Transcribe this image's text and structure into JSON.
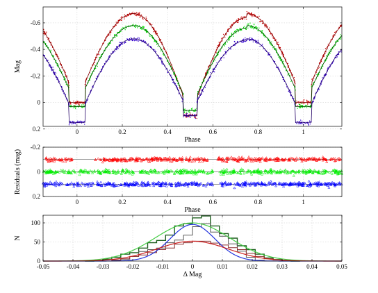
{
  "chart_data": [
    {
      "type": "line",
      "xlabel": "Phase",
      "ylabel": "Mag",
      "xlim": [
        -0.15,
        1.17
      ],
      "ylim": [
        -0.72,
        0.18
      ],
      "y_inverted": true,
      "grid": true,
      "xticks": [
        0,
        0.2,
        0.4,
        0.6,
        0.8,
        1
      ],
      "xtick_labels": [
        "0",
        "0.2",
        "0.4",
        "0.6",
        "0.8",
        "1"
      ],
      "yticks": [
        -0.6,
        -0.4,
        -0.2,
        0,
        0.2
      ],
      "ytick_labels": [
        "-0.6",
        "-0.4",
        "-0.2",
        "0",
        "0.2"
      ],
      "series": [
        {
          "color": "#cc0000",
          "marker": "dots",
          "model": "#7a0000",
          "min_mag": 0.0,
          "max_mag": -0.67,
          "secondary_min_mag": 0.1,
          "max_mag_2": -0.64
        },
        {
          "color": "#00dd00",
          "marker": "dots",
          "model": "#004400",
          "min_mag": 0.03,
          "max_mag": -0.58,
          "secondary_min_mag": 0.06,
          "max_mag_2": -0.56
        },
        {
          "color": "#3300cc",
          "marker": "dots",
          "model": "#220066",
          "min_mag": 0.15,
          "max_mag": -0.48,
          "secondary_min_mag": 0.1,
          "max_mag_2": -0.47
        }
      ]
    },
    {
      "type": "scatter",
      "xlabel": "Phase",
      "ylabel": "Residuals (mag)",
      "xlim": [
        -0.15,
        1.17
      ],
      "ylim": [
        -0.2,
        0.2
      ],
      "y_inverted": true,
      "grid": true,
      "xticks": [
        0,
        0.2,
        0.4,
        0.6,
        0.8,
        1
      ],
      "xtick_labels": [
        "0",
        "0.2",
        "0.4",
        "0.6",
        "0.8",
        "1"
      ],
      "yticks": [
        -0.2,
        0,
        0.2
      ],
      "ytick_labels": [
        "-0.2",
        "0",
        "0.2"
      ],
      "series": [
        {
          "color": "#ff0000",
          "marker": "triangle",
          "offset": -0.1
        },
        {
          "color": "#00ee00",
          "marker": "triangle",
          "offset": 0.0
        },
        {
          "color": "#0000ff",
          "marker": "triangle",
          "offset": 0.1
        }
      ]
    },
    {
      "type": "bar",
      "xlabel": "Δ Mag",
      "ylabel": "N",
      "xlim": [
        -0.05,
        0.05
      ],
      "ylim": [
        0,
        120
      ],
      "grid": true,
      "xticks": [
        -0.05,
        -0.04,
        -0.03,
        -0.02,
        -0.01,
        0,
        0.01,
        0.02,
        0.03,
        0.04,
        0.05
      ],
      "xtick_labels": [
        "-0.05",
        "-0.04",
        "-0.03",
        "-0.02",
        "-0.01",
        "0",
        "0.01",
        "0.02",
        "0.03",
        "0.04",
        "0.05"
      ],
      "yticks": [
        0,
        50,
        100
      ],
      "ytick_labels": [
        "0",
        "50",
        "100"
      ],
      "bin_edges": [
        -0.036,
        -0.033,
        -0.03,
        -0.027,
        -0.024,
        -0.021,
        -0.018,
        -0.015,
        -0.012,
        -0.009,
        -0.006,
        -0.003,
        0.0,
        0.003,
        0.006,
        0.009,
        0.012,
        0.015,
        0.018,
        0.021,
        0.024,
        0.027,
        0.03,
        0.033,
        0.036
      ],
      "series": [
        {
          "color": "#1f5f1f",
          "counts": [
            0,
            2,
            5,
            10,
            18,
            22,
            34,
            48,
            54,
            68,
            92,
            98,
            113,
            118,
            92,
            72,
            60,
            40,
            30,
            18,
            8,
            4,
            2,
            0
          ]
        },
        {
          "color": "#555555",
          "counts": [
            0,
            0,
            0,
            2,
            5,
            12,
            25,
            30,
            34,
            48,
            55,
            68,
            90,
            98,
            76,
            65,
            45,
            26,
            10,
            2,
            0,
            0,
            0,
            0
          ]
        },
        {
          "color": "#8a3030",
          "counts": [
            0,
            0,
            0,
            3,
            6,
            12,
            16,
            22,
            30,
            34,
            44,
            48,
            52,
            52,
            47,
            42,
            35,
            30,
            20,
            12,
            6,
            3,
            0,
            0
          ]
        }
      ],
      "fits": [
        {
          "color": "#44cc44",
          "mu": 0.0,
          "sigma": 0.0125,
          "amp": 100
        },
        {
          "color": "#2233dd",
          "mu": 0.0,
          "sigma": 0.0075,
          "amp": 96
        },
        {
          "color": "#cc2222",
          "mu": 0.0,
          "sigma": 0.012,
          "amp": 52
        }
      ]
    }
  ]
}
